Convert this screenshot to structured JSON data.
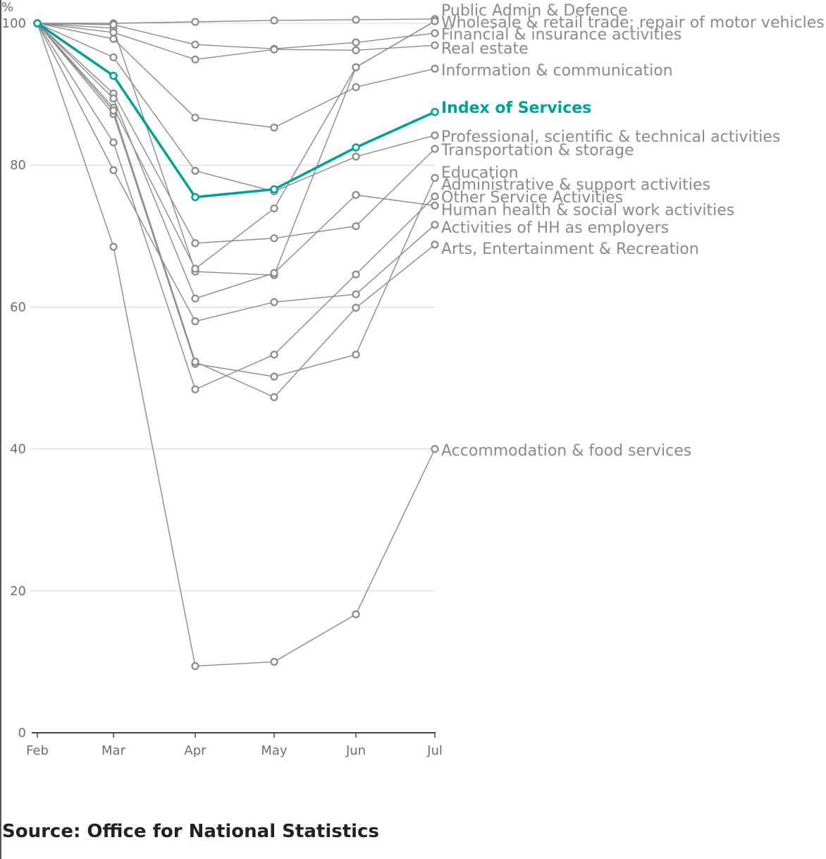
{
  "chart_data": {
    "type": "line",
    "y_unit_label": "%",
    "categories": [
      "Feb",
      "Mar",
      "Apr",
      "May",
      "Jun",
      "Jul"
    ],
    "y_ticks": [
      0,
      20,
      40,
      60,
      80,
      100
    ],
    "ylim": [
      0,
      100
    ],
    "grid": true,
    "highlight_color": "#00a09a",
    "series_color": "#8a8a8a",
    "series": [
      {
        "name": "Public Admin & Defence",
        "values": [
          100,
          100.0,
          100.2,
          100.4,
          100.5,
          100.6
        ]
      },
      {
        "name": "Wholesale & retail trade; repair of motor vehicles",
        "values": [
          100,
          99.3,
          65.0,
          64.5,
          93.8,
          100.3
        ]
      },
      {
        "name": "Financial & insurance activities",
        "values": [
          100,
          99.8,
          97.0,
          96.4,
          97.3,
          98.6
        ]
      },
      {
        "name": "Real estate",
        "values": [
          100,
          98.7,
          94.9,
          96.3,
          96.2,
          96.9
        ]
      },
      {
        "name": "Information & communication",
        "values": [
          100,
          97.8,
          86.7,
          85.3,
          91.0,
          93.6
        ]
      },
      {
        "name": "Index of Services",
        "highlight": true,
        "values": [
          100,
          92.6,
          75.5,
          76.6,
          82.5,
          87.5
        ]
      },
      {
        "name": "Professional, scientific & technical activities",
        "values": [
          100,
          95.2,
          79.2,
          76.3,
          81.2,
          84.2
        ]
      },
      {
        "name": "Transportation & storage",
        "values": [
          100,
          90.1,
          69.0,
          69.7,
          71.4,
          82.3
        ]
      },
      {
        "name": "Education",
        "values": [
          100,
          87.2,
          52.0,
          50.2,
          53.3,
          78.2
        ]
      },
      {
        "name": "Administrative & support activities",
        "values": [
          100,
          88.1,
          65.4,
          73.9,
          93.8,
          100.3
        ]
      },
      {
        "name": "Other Service Activities",
        "values": [
          100,
          83.2,
          48.4,
          53.3,
          64.6,
          75.6
        ]
      },
      {
        "name": "Human health & social work activities",
        "values": [
          100,
          89.4,
          61.2,
          64.8,
          75.8,
          74.3
        ]
      },
      {
        "name": "Activities of HH as employers",
        "values": [
          100,
          79.3,
          58.0,
          60.7,
          61.8,
          71.6
        ]
      },
      {
        "name": "Arts, Entertainment & Recreation",
        "values": [
          100,
          87.7,
          52.3,
          47.3,
          59.9,
          68.8
        ]
      },
      {
        "name": "Accommodation & food services",
        "values": [
          100,
          68.5,
          9.4,
          10.0,
          16.7,
          40.0
        ]
      }
    ]
  },
  "source": "Source: Office for National Statistics"
}
